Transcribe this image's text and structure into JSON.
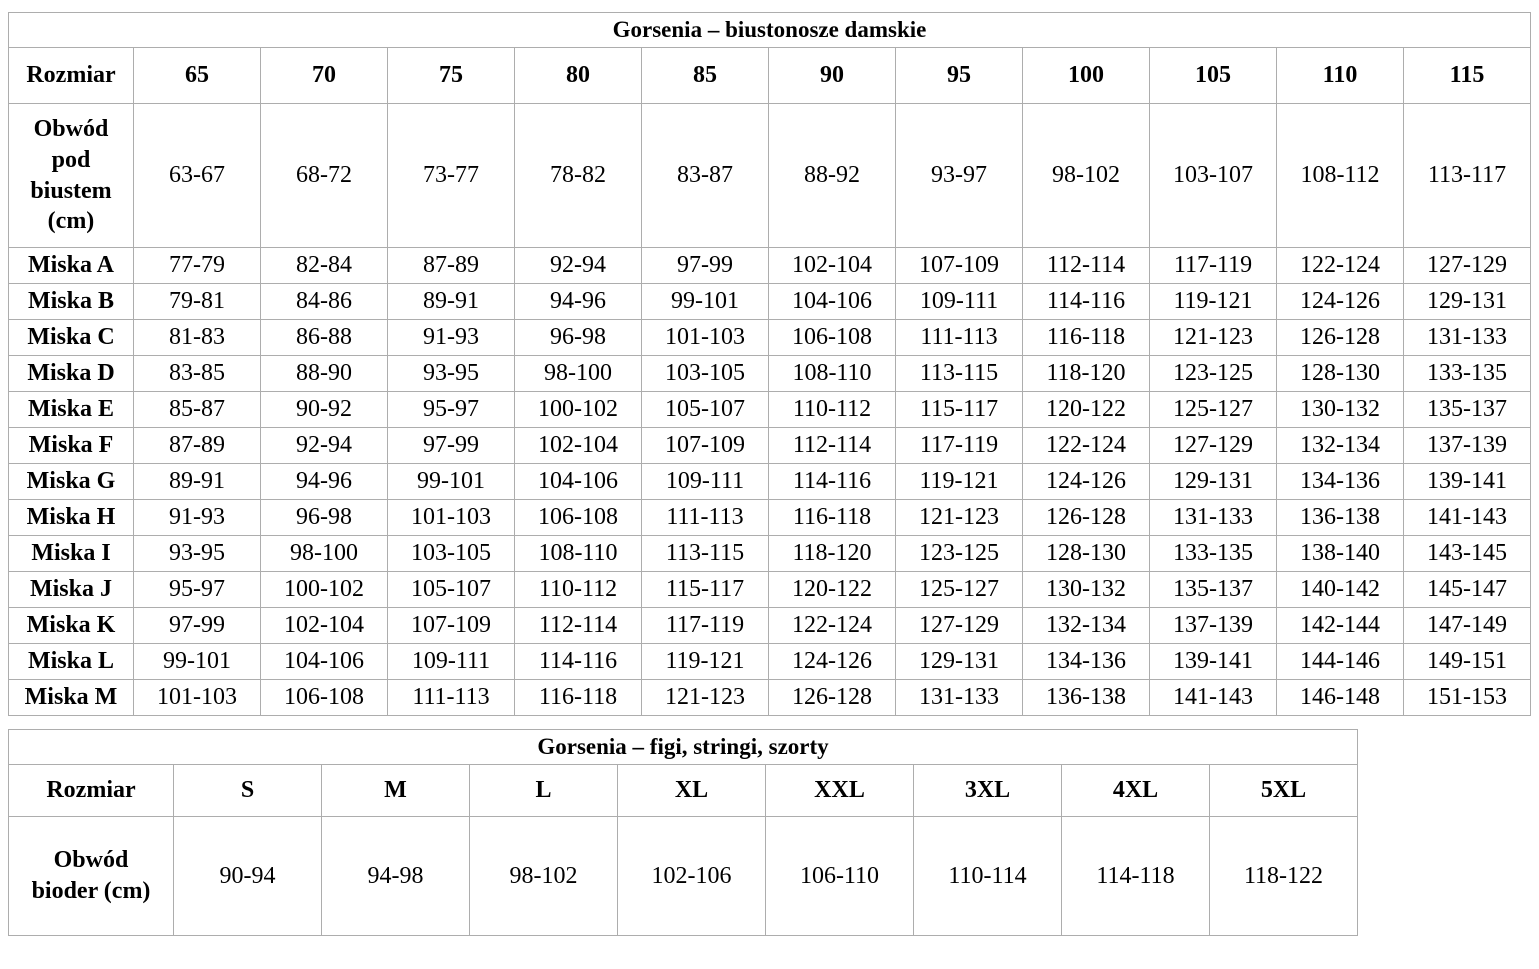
{
  "tables": [
    {
      "title": "Gorsenia – biustonosze damskie",
      "header": [
        "Rozmiar",
        "65",
        "70",
        "75",
        "80",
        "85",
        "90",
        "95",
        "100",
        "105",
        "110",
        "115"
      ],
      "rows": [
        {
          "label": "Obwód pod biustem (cm)",
          "values": [
            "63-67",
            "68-72",
            "73-77",
            "78-82",
            "83-87",
            "88-92",
            "93-97",
            "98-102",
            "103-107",
            "108-112",
            "113-117"
          ]
        },
        {
          "label": "Miska A",
          "values": [
            "77-79",
            "82-84",
            "87-89",
            "92-94",
            "97-99",
            "102-104",
            "107-109",
            "112-114",
            "117-119",
            "122-124",
            "127-129"
          ]
        },
        {
          "label": "Miska B",
          "values": [
            "79-81",
            "84-86",
            "89-91",
            "94-96",
            "99-101",
            "104-106",
            "109-111",
            "114-116",
            "119-121",
            "124-126",
            "129-131"
          ]
        },
        {
          "label": "Miska C",
          "values": [
            "81-83",
            "86-88",
            "91-93",
            "96-98",
            "101-103",
            "106-108",
            "111-113",
            "116-118",
            "121-123",
            "126-128",
            "131-133"
          ]
        },
        {
          "label": "Miska D",
          "values": [
            "83-85",
            "88-90",
            "93-95",
            "98-100",
            "103-105",
            "108-110",
            "113-115",
            "118-120",
            "123-125",
            "128-130",
            "133-135"
          ]
        },
        {
          "label": "Miska E",
          "values": [
            "85-87",
            "90-92",
            "95-97",
            "100-102",
            "105-107",
            "110-112",
            "115-117",
            "120-122",
            "125-127",
            "130-132",
            "135-137"
          ]
        },
        {
          "label": "Miska F",
          "values": [
            "87-89",
            "92-94",
            "97-99",
            "102-104",
            "107-109",
            "112-114",
            "117-119",
            "122-124",
            "127-129",
            "132-134",
            "137-139"
          ]
        },
        {
          "label": "Miska G",
          "values": [
            "89-91",
            "94-96",
            "99-101",
            "104-106",
            "109-111",
            "114-116",
            "119-121",
            "124-126",
            "129-131",
            "134-136",
            "139-141"
          ]
        },
        {
          "label": "Miska H",
          "values": [
            "91-93",
            "96-98",
            "101-103",
            "106-108",
            "111-113",
            "116-118",
            "121-123",
            "126-128",
            "131-133",
            "136-138",
            "141-143"
          ]
        },
        {
          "label": "Miska I",
          "values": [
            "93-95",
            "98-100",
            "103-105",
            "108-110",
            "113-115",
            "118-120",
            "123-125",
            "128-130",
            "133-135",
            "138-140",
            "143-145"
          ]
        },
        {
          "label": "Miska J",
          "values": [
            "95-97",
            "100-102",
            "105-107",
            "110-112",
            "115-117",
            "120-122",
            "125-127",
            "130-132",
            "135-137",
            "140-142",
            "145-147"
          ]
        },
        {
          "label": "Miska K",
          "values": [
            "97-99",
            "102-104",
            "107-109",
            "112-114",
            "117-119",
            "122-124",
            "127-129",
            "132-134",
            "137-139",
            "142-144",
            "147-149"
          ]
        },
        {
          "label": "Miska L",
          "values": [
            "99-101",
            "104-106",
            "109-111",
            "114-116",
            "119-121",
            "124-126",
            "129-131",
            "134-136",
            "139-141",
            "144-146",
            "149-151"
          ]
        },
        {
          "label": "Miska M",
          "values": [
            "101-103",
            "106-108",
            "111-113",
            "116-118",
            "121-123",
            "126-128",
            "131-133",
            "136-138",
            "141-143",
            "146-148",
            "151-153"
          ]
        }
      ]
    },
    {
      "title": "Gorsenia – figi, stringi, szorty",
      "header": [
        "Rozmiar",
        "S",
        "M",
        "L",
        "XL",
        "XXL",
        "3XL",
        "4XL",
        "5XL"
      ],
      "rows": [
        {
          "label": "Obwód bioder (cm)",
          "values": [
            "90-94",
            "94-98",
            "98-102",
            "102-106",
            "106-110",
            "110-114",
            "114-118",
            "118-122"
          ]
        }
      ]
    }
  ]
}
